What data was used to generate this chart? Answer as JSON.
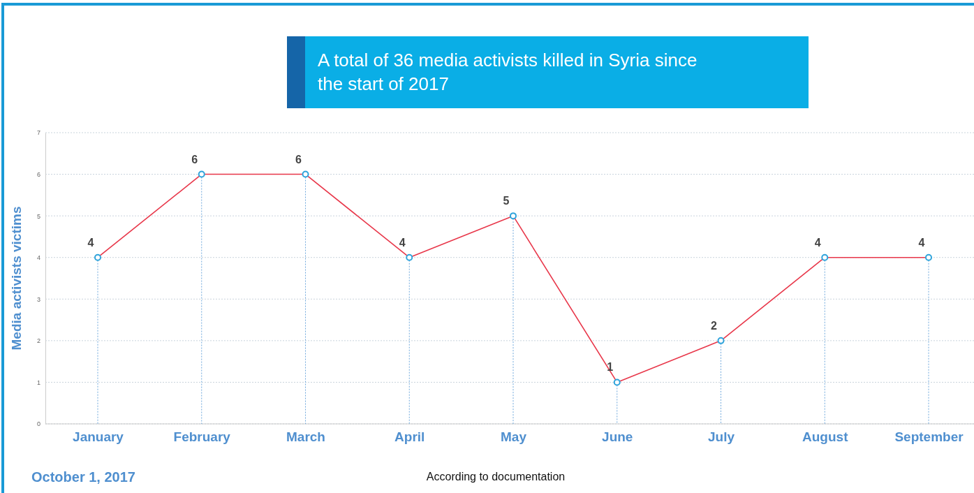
{
  "chart_data": {
    "type": "line",
    "title": "A total of 36 media activists killed in Syria since the start of 2017",
    "ylabel": "Media activists victims",
    "categories": [
      "January",
      "February",
      "March",
      "April",
      "May",
      "June",
      "July",
      "August",
      "September"
    ],
    "series": [
      {
        "color": "#e8374a",
        "values": [
          4,
          6,
          6,
          4,
          5,
          1,
          2,
          4,
          4
        ]
      }
    ],
    "ylim": [
      0,
      7
    ],
    "yticks": [
      0,
      1,
      2,
      3,
      4,
      5,
      6,
      7
    ],
    "grid": true,
    "marker": "circle",
    "data_labels": true,
    "annotations": [
      "October 1, 2017",
      "According to documentation"
    ]
  }
}
